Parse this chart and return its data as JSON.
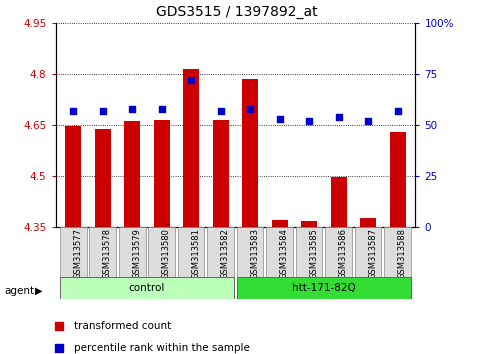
{
  "title": "GDS3515 / 1397892_at",
  "samples": [
    "GSM313577",
    "GSM313578",
    "GSM313579",
    "GSM313580",
    "GSM313581",
    "GSM313582",
    "GSM313583",
    "GSM313584",
    "GSM313585",
    "GSM313586",
    "GSM313587",
    "GSM313588"
  ],
  "bar_values": [
    4.645,
    4.638,
    4.66,
    4.665,
    4.815,
    4.665,
    4.785,
    4.37,
    4.365,
    4.495,
    4.375,
    4.63
  ],
  "percentile_values": [
    57,
    57,
    58,
    58,
    72,
    57,
    58,
    53,
    52,
    54,
    52,
    57
  ],
  "ylim_left": [
    4.35,
    4.95
  ],
  "ylim_right": [
    0,
    100
  ],
  "yticks_left": [
    4.35,
    4.5,
    4.65,
    4.8,
    4.95
  ],
  "yticks_right": [
    0,
    25,
    50,
    75,
    100
  ],
  "ytick_labels_left": [
    "4.35",
    "4.5",
    "4.65",
    "4.8",
    "4.95"
  ],
  "ytick_labels_right": [
    "0",
    "25",
    "50",
    "75",
    "100%"
  ],
  "bar_color": "#cc0000",
  "dot_color": "#0000cc",
  "bar_width": 0.55,
  "groups": [
    {
      "label": "control",
      "start": 0,
      "end": 5,
      "color": "#bbffbb"
    },
    {
      "label": "htt-171-82Q",
      "start": 6,
      "end": 11,
      "color": "#33dd33"
    }
  ],
  "agent_label": "agent",
  "legend_items": [
    {
      "color": "#cc0000",
      "label": "transformed count"
    },
    {
      "color": "#0000cc",
      "label": "percentile rank within the sample"
    }
  ],
  "grid_color": "black",
  "sample_bg_color": "#dddddd",
  "plot_bg": "white",
  "left_label_color": "#cc0000",
  "right_label_color": "#0000cc",
  "fig_width": 4.83,
  "fig_height": 3.54,
  "dpi": 100
}
